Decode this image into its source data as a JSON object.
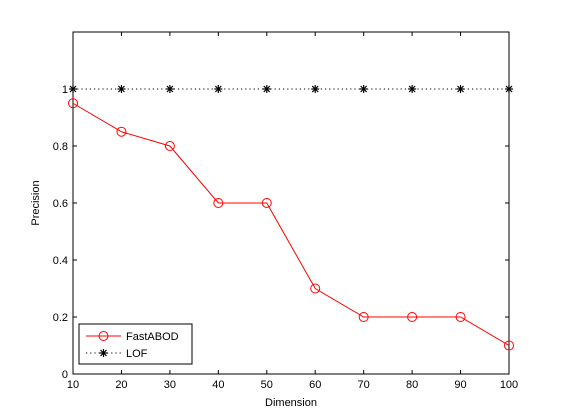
{
  "chart_data": {
    "type": "line",
    "title": "",
    "xlabel": "Dimension",
    "ylabel": "Precision",
    "x": [
      10,
      20,
      30,
      40,
      50,
      60,
      70,
      80,
      90,
      100
    ],
    "xlim": [
      10,
      100
    ],
    "ylim": [
      0,
      1.2
    ],
    "xticks": [
      "10",
      "20",
      "30",
      "40",
      "50",
      "60",
      "70",
      "80",
      "90",
      "100"
    ],
    "yticks": [
      "0",
      "0.2",
      "0.4",
      "0.6",
      "0.8",
      "1"
    ],
    "grid": false,
    "legend_position": "bottom-left",
    "series": [
      {
        "name": "FastABOD",
        "values": [
          0.95,
          0.85,
          0.8,
          0.6,
          0.6,
          0.3,
          0.2,
          0.2,
          0.2,
          0.1
        ],
        "color": "#ff0000",
        "line_style": "solid",
        "marker": "circle"
      },
      {
        "name": "LOF",
        "values": [
          1,
          1,
          1,
          1,
          1,
          1,
          1,
          1,
          1,
          1
        ],
        "color": "#000000",
        "line_style": "dotted",
        "marker": "asterisk"
      }
    ]
  }
}
